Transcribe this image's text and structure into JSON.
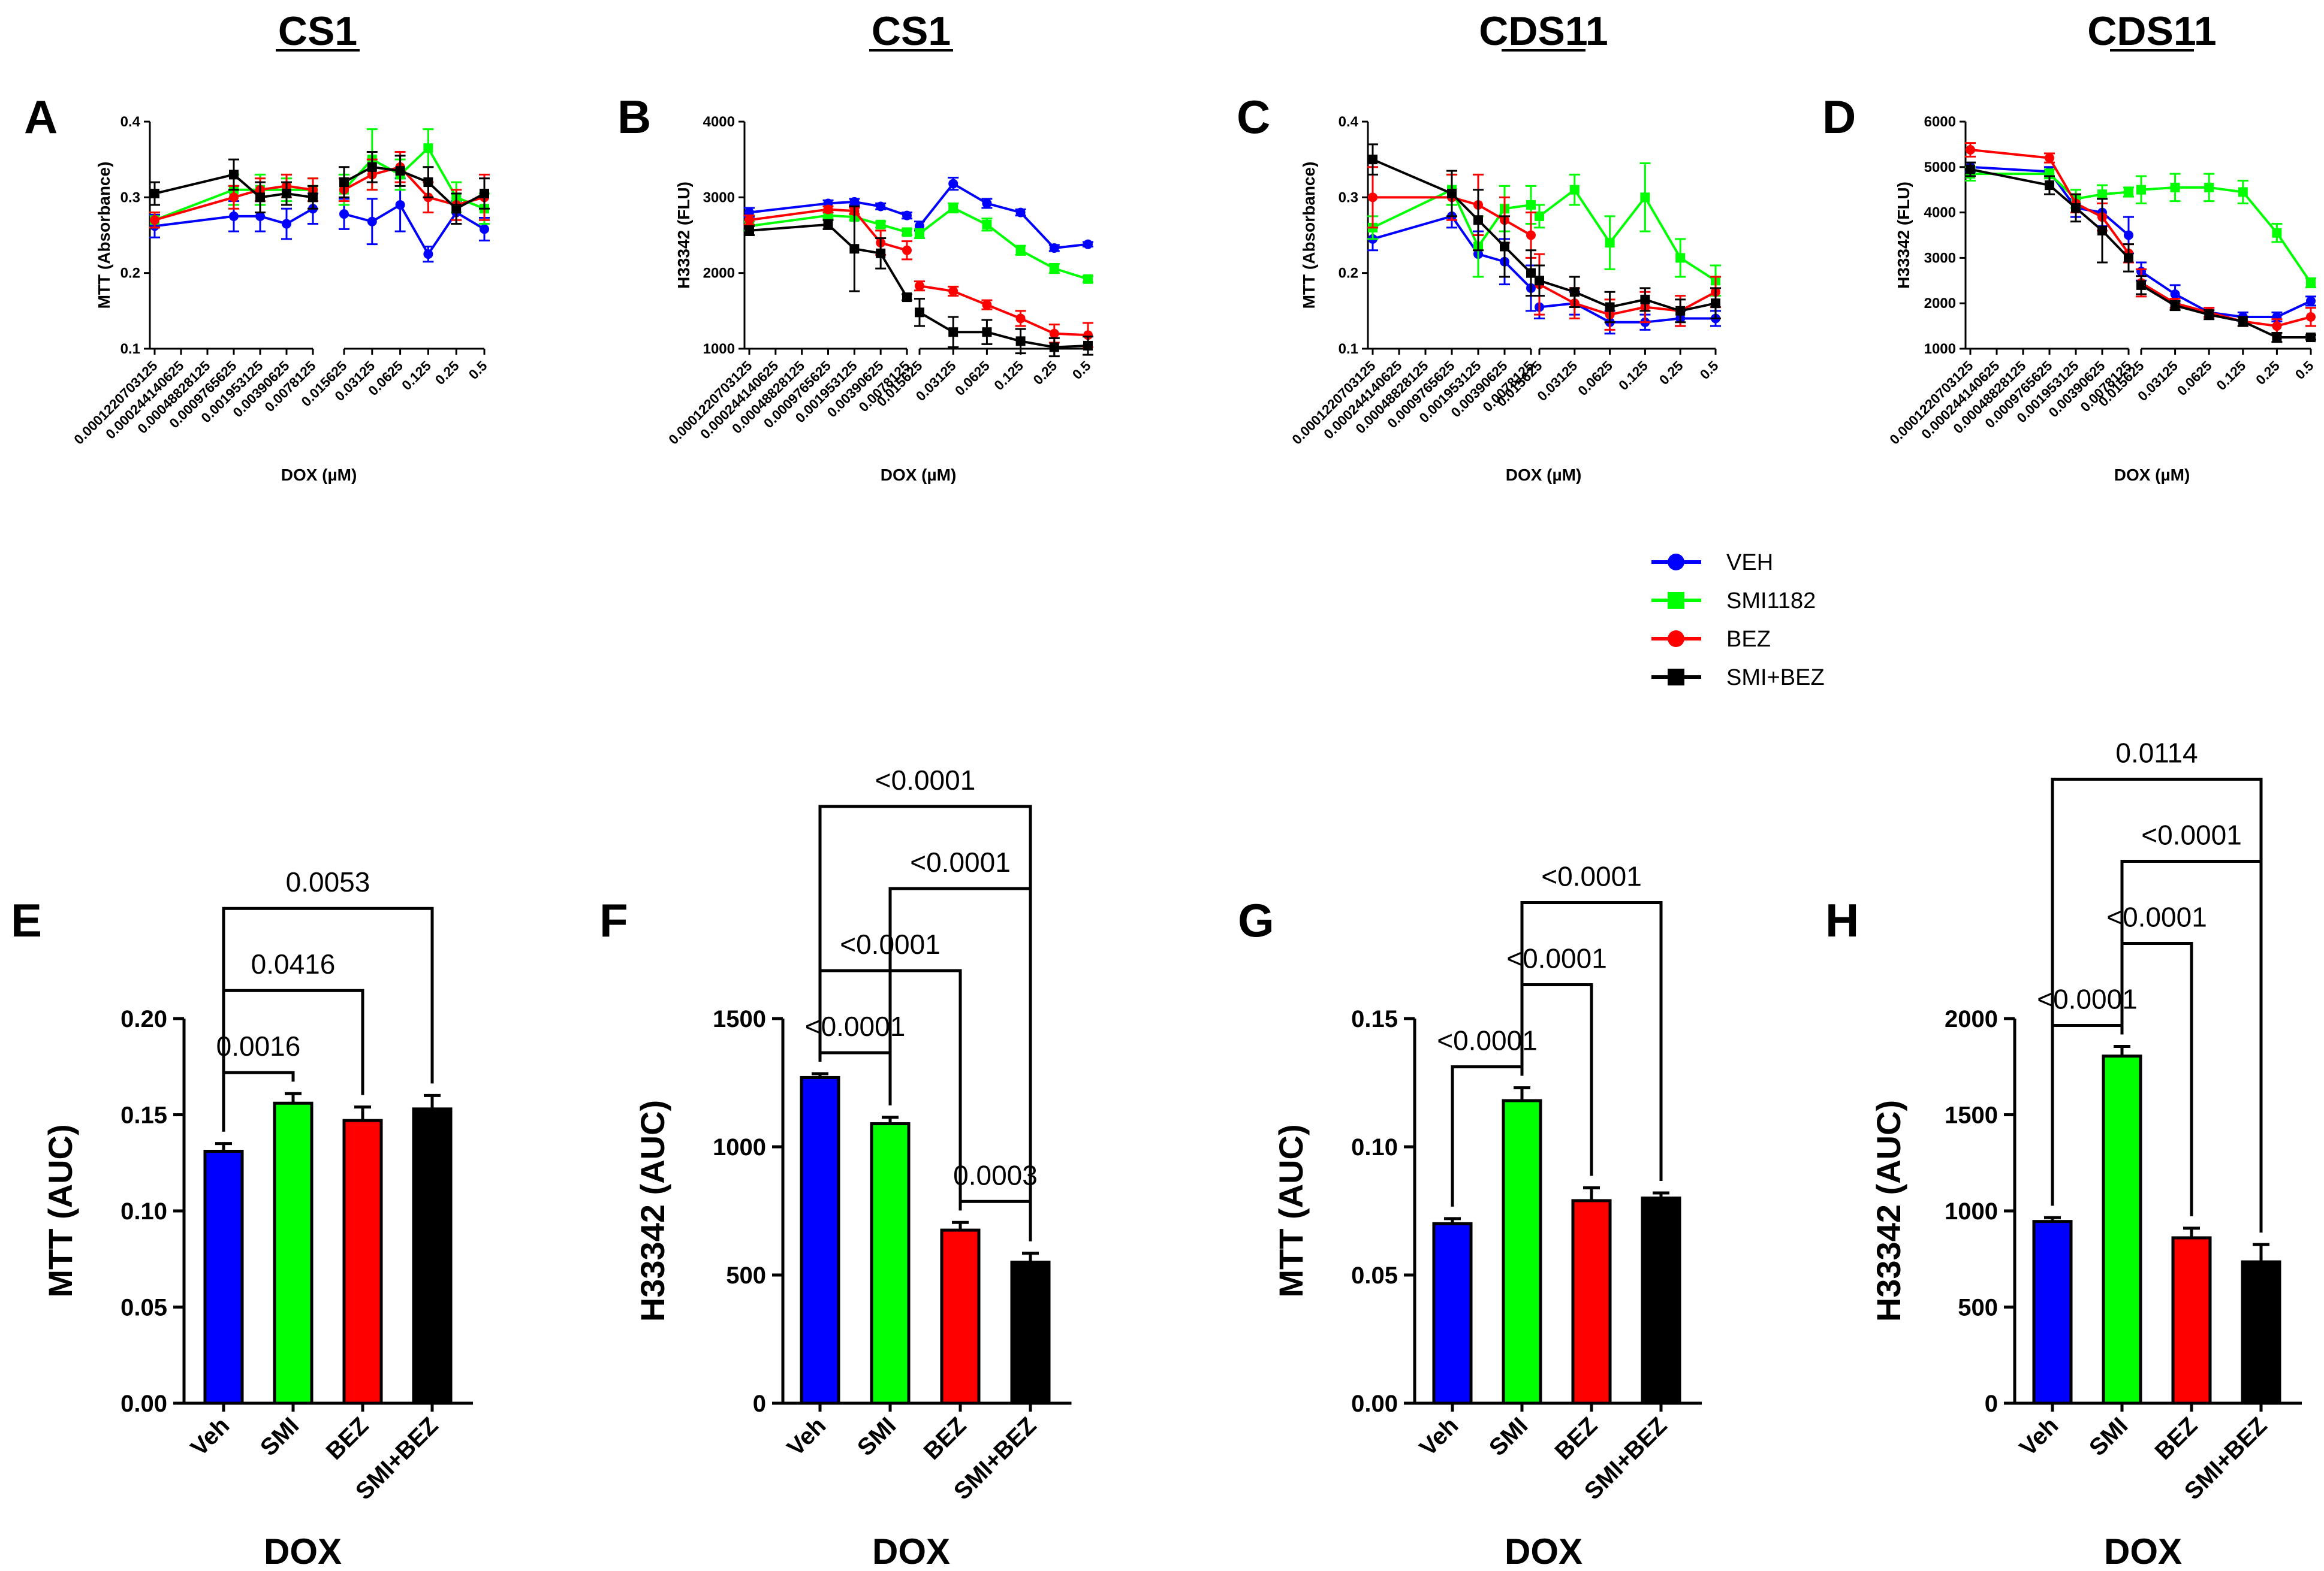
{
  "legend": {
    "entries": [
      {
        "name": "VEH",
        "color": "#0000FF",
        "marker": "circle"
      },
      {
        "name": "SMI1182",
        "color": "#00FF00",
        "marker": "square"
      },
      {
        "name": "BEZ",
        "color": "#FF0000",
        "marker": "circle"
      },
      {
        "name": "SMI+BEZ",
        "color": "#000000",
        "marker": "square"
      }
    ]
  },
  "chart_data": [
    {
      "panel": "A",
      "type": "line",
      "title": "CS1",
      "xlabel": "DOX (µM)",
      "ylabel": "MTT (Absorbance)",
      "ylim": [
        0.1,
        0.4
      ],
      "yticks": [
        "0.1",
        "0.2",
        "0.3",
        "0.4"
      ],
      "x_left": [
        "0.0001220703125",
        "0.000244140625",
        "0.00048828125",
        "0.0009765625",
        "0.001953125",
        "0.00390625",
        "0.0078125"
      ],
      "x_right": [
        "0.015625",
        "0.03125",
        "0.0625",
        "0.125",
        "0.25",
        "0.5"
      ],
      "left_points": [
        0,
        3,
        4,
        5,
        6
      ],
      "series": [
        {
          "name": "VEH",
          "values": [
            0.262,
            0.275,
            0.275,
            0.265,
            0.285,
            0.278,
            0.268,
            0.29,
            0.225,
            0.28,
            0.258
          ],
          "errors": [
            0.015,
            0.02,
            0.02,
            0.02,
            0.02,
            0.02,
            0.03,
            0.035,
            0.01,
            0.015,
            0.015
          ]
        },
        {
          "name": "SMI1182",
          "values": [
            0.27,
            0.31,
            0.31,
            0.31,
            0.31,
            0.31,
            0.35,
            0.33,
            0.365,
            0.3,
            0.285
          ],
          "errors": [
            0.01,
            0.02,
            0.02,
            0.015,
            0.015,
            0.02,
            0.04,
            0.02,
            0.025,
            0.02,
            0.02
          ]
        },
        {
          "name": "BEZ",
          "values": [
            0.27,
            0.3,
            0.31,
            0.315,
            0.31,
            0.31,
            0.33,
            0.34,
            0.3,
            0.29,
            0.3
          ],
          "errors": [
            0.01,
            0.015,
            0.015,
            0.015,
            0.015,
            0.015,
            0.02,
            0.02,
            0.02,
            0.02,
            0.03
          ]
        },
        {
          "name": "SMI+BEZ",
          "values": [
            0.305,
            0.33,
            0.3,
            0.305,
            0.3,
            0.32,
            0.34,
            0.335,
            0.32,
            0.285,
            0.305
          ],
          "errors": [
            0.015,
            0.02,
            0.02,
            0.015,
            0.015,
            0.02,
            0.02,
            0.02,
            0.02,
            0.02,
            0.02
          ]
        }
      ]
    },
    {
      "panel": "B",
      "type": "line",
      "title": "CS1",
      "xlabel": "DOX (µM)",
      "ylabel": "H33342 (FLU)",
      "ylim": [
        1000,
        4000
      ],
      "yticks": [
        "1000",
        "2000",
        "3000",
        "4000"
      ],
      "x_left": [
        "0.0001220703125",
        "0.000244140625",
        "0.00048828125",
        "0.0009765625",
        "0.001953125",
        "0.00390625",
        "0.0078125"
      ],
      "x_right": [
        "0.015625",
        "0.03125",
        "0.0625",
        "0.125",
        "0.25",
        "0.5"
      ],
      "left_points": [
        0,
        3,
        4,
        5,
        6
      ],
      "series": [
        {
          "name": "VEH",
          "values": [
            2800,
            2920,
            2940,
            2880,
            2760,
            2620,
            3180,
            2920,
            2800,
            2330,
            2380
          ],
          "errors": [
            60,
            40,
            40,
            40,
            40,
            60,
            80,
            60,
            40,
            40,
            30
          ]
        },
        {
          "name": "SMI1182",
          "values": [
            2620,
            2760,
            2740,
            2640,
            2540,
            2520,
            2860,
            2640,
            2300,
            2060,
            1920
          ],
          "errors": [
            60,
            40,
            40,
            40,
            40,
            60,
            60,
            80,
            60,
            60,
            40
          ]
        },
        {
          "name": "BEZ",
          "values": [
            2700,
            2840,
            2820,
            2400,
            2300,
            1830,
            1760,
            1580,
            1400,
            1200,
            1180
          ],
          "errors": [
            60,
            40,
            40,
            160,
            120,
            60,
            60,
            60,
            100,
            120,
            160
          ]
        },
        {
          "name": "SMI+BEZ",
          "values": [
            2560,
            2640,
            2320,
            2260,
            1680,
            1480,
            1220,
            1220,
            1100,
            1020,
            1040
          ],
          "errors": [
            60,
            60,
            560,
            200,
            40,
            180,
            200,
            160,
            160,
            120,
            120
          ]
        }
      ]
    },
    {
      "panel": "C",
      "type": "line",
      "title": "CDS11",
      "xlabel": "DOX (µM)",
      "ylabel": "MTT (Absorbance)",
      "ylim": [
        0.1,
        0.4
      ],
      "yticks": [
        "0.1",
        "0.2",
        "0.3",
        "0.4"
      ],
      "x_left": [
        "0.0001220703125",
        "0.000244140625",
        "0.00048828125",
        "0.0009765625",
        "0.001953125",
        "0.00390625",
        "0.0078125"
      ],
      "x_right": [
        "0.015625",
        "0.03125",
        "0.0625",
        "0.125",
        "0.25",
        "0.5"
      ],
      "left_points": [
        0,
        3,
        4,
        5,
        6
      ],
      "series": [
        {
          "name": "VEH",
          "values": [
            0.245,
            0.275,
            0.225,
            0.215,
            0.18,
            0.155,
            0.16,
            0.135,
            0.135,
            0.14,
            0.14
          ],
          "errors": [
            0.015,
            0.015,
            0.03,
            0.03,
            0.03,
            0.015,
            0.015,
            0.015,
            0.01,
            0.01,
            0.01
          ]
        },
        {
          "name": "SMI1182",
          "values": [
            0.26,
            0.31,
            0.235,
            0.285,
            0.29,
            0.275,
            0.31,
            0.24,
            0.3,
            0.22,
            0.19
          ],
          "errors": [
            0.015,
            0.02,
            0.04,
            0.03,
            0.025,
            0.015,
            0.02,
            0.035,
            0.045,
            0.025,
            0.02
          ]
        },
        {
          "name": "BEZ",
          "values": [
            0.3,
            0.3,
            0.29,
            0.27,
            0.25,
            0.185,
            0.16,
            0.145,
            0.155,
            0.15,
            0.175
          ],
          "errors": [
            0.04,
            0.03,
            0.04,
            0.03,
            0.03,
            0.04,
            0.02,
            0.02,
            0.02,
            0.02,
            0.02
          ]
        },
        {
          "name": "SMI+BEZ",
          "values": [
            0.35,
            0.305,
            0.27,
            0.235,
            0.2,
            0.19,
            0.175,
            0.155,
            0.165,
            0.15,
            0.16
          ],
          "errors": [
            0.02,
            0.03,
            0.04,
            0.04,
            0.03,
            0.02,
            0.02,
            0.02,
            0.015,
            0.015,
            0.02
          ]
        }
      ]
    },
    {
      "panel": "D",
      "type": "line",
      "title": "CDS11",
      "xlabel": "DOX (µM)",
      "ylabel": "H33342 (FLU)",
      "ylim": [
        1000,
        6000
      ],
      "yticks": [
        "1000",
        "2000",
        "3000",
        "4000",
        "5000",
        "6000"
      ],
      "x_left": [
        "0.0001220703125",
        "0.000244140625",
        "0.00048828125",
        "0.0009765625",
        "0.001953125",
        "0.00390625",
        "0.0078125"
      ],
      "x_right": [
        "0.015625",
        "0.03125",
        "0.0625",
        "0.125",
        "0.25",
        "0.5"
      ],
      "left_points": [
        0,
        3,
        4,
        5,
        6
      ],
      "series": [
        {
          "name": "VEH",
          "values": [
            5000,
            4900,
            4100,
            4000,
            3500,
            2700,
            2200,
            1800,
            1700,
            1700,
            2050
          ],
          "errors": [
            100,
            100,
            200,
            300,
            400,
            200,
            200,
            100,
            100,
            100,
            100
          ]
        },
        {
          "name": "SMI1182",
          "values": [
            4850,
            4850,
            4300,
            4400,
            4450,
            4500,
            4550,
            4550,
            4450,
            3550,
            2450
          ],
          "errors": [
            150,
            100,
            200,
            200,
            100,
            300,
            300,
            300,
            250,
            200,
            100
          ]
        },
        {
          "name": "BEZ",
          "values": [
            5380,
            5200,
            4200,
            3900,
            3100,
            2450,
            2000,
            1800,
            1600,
            1500,
            1700
          ],
          "errors": [
            150,
            100,
            200,
            300,
            200,
            300,
            100,
            100,
            100,
            150,
            200
          ]
        },
        {
          "name": "SMI+BEZ",
          "values": [
            4950,
            4600,
            4100,
            3600,
            3000,
            2400,
            1950,
            1750,
            1600,
            1250,
            1250
          ],
          "errors": [
            150,
            200,
            300,
            700,
            300,
            200,
            100,
            100,
            100,
            100,
            50
          ]
        }
      ]
    },
    {
      "panel": "E",
      "type": "bar",
      "title": "",
      "categories": [
        "Veh",
        "SMI",
        "BEZ",
        "SMI+BEZ"
      ],
      "values": [
        0.131,
        0.156,
        0.147,
        0.153
      ],
      "errors": [
        0.004,
        0.005,
        0.007,
        0.007
      ],
      "colors": [
        "#0000FF",
        "#00FF00",
        "#FF0000",
        "#000000"
      ],
      "ylim": [
        0,
        0.2
      ],
      "yticks": [
        "0.00",
        "0.05",
        "0.10",
        "0.15",
        "0.20"
      ],
      "xlabel": "DOX",
      "ylabel": "MTT (AUC)",
      "comparisons": [
        {
          "a": 0,
          "b": 1,
          "p": "0.0016"
        },
        {
          "a": 0,
          "b": 2,
          "p": "0.0416"
        },
        {
          "a": 0,
          "b": 3,
          "p": "0.0053"
        }
      ]
    },
    {
      "panel": "F",
      "type": "bar",
      "title": "",
      "categories": [
        "Veh",
        "SMI",
        "BEZ",
        "SMI+BEZ"
      ],
      "values": [
        1270,
        1090,
        675,
        550
      ],
      "errors": [
        15,
        25,
        30,
        35
      ],
      "colors": [
        "#0000FF",
        "#00FF00",
        "#FF0000",
        "#000000"
      ],
      "ylim": [
        0,
        1500
      ],
      "yticks": [
        "0",
        "500",
        "1000",
        "1500"
      ],
      "xlabel": "DOX",
      "ylabel": "H33342 (AUC)",
      "comparisons": [
        {
          "a": 0,
          "b": 1,
          "p": "<0.0001"
        },
        {
          "a": 2,
          "b": 3,
          "p": "0.0003"
        },
        {
          "a": 0,
          "b": 2,
          "p": "<0.0001"
        },
        {
          "a": 1,
          "b": 3,
          "p": "<0.0001"
        },
        {
          "a": 0,
          "b": 3,
          "p": "<0.0001"
        }
      ]
    },
    {
      "panel": "G",
      "type": "bar",
      "title": "",
      "categories": [
        "Veh",
        "SMI",
        "BEZ",
        "SMI+BEZ"
      ],
      "values": [
        0.07,
        0.118,
        0.079,
        0.08
      ],
      "errors": [
        0.002,
        0.005,
        0.005,
        0.002
      ],
      "colors": [
        "#0000FF",
        "#00FF00",
        "#FF0000",
        "#000000"
      ],
      "ylim": [
        0,
        0.15
      ],
      "yticks": [
        "0.00",
        "0.05",
        "0.10",
        "0.15"
      ],
      "xlabel": "DOX",
      "ylabel": "MTT (AUC)",
      "comparisons": [
        {
          "a": 0,
          "b": 1,
          "p": "<0.0001"
        },
        {
          "a": 1,
          "b": 2,
          "p": "<0.0001"
        },
        {
          "a": 1,
          "b": 3,
          "p": "<0.0001"
        }
      ]
    },
    {
      "panel": "H",
      "type": "bar",
      "title": "",
      "categories": [
        "Veh",
        "SMI",
        "BEZ",
        "SMI+BEZ"
      ],
      "values": [
        945,
        1805,
        860,
        735
      ],
      "errors": [
        20,
        50,
        50,
        90
      ],
      "colors": [
        "#0000FF",
        "#00FF00",
        "#FF0000",
        "#000000"
      ],
      "ylim": [
        0,
        2000
      ],
      "yticks": [
        "0",
        "500",
        "1000",
        "1500",
        "2000"
      ],
      "xlabel": "DOX",
      "ylabel": "H33342 (AUC)",
      "comparisons": [
        {
          "a": 0,
          "b": 1,
          "p": "<0.0001"
        },
        {
          "a": 1,
          "b": 2,
          "p": "<0.0001"
        },
        {
          "a": 1,
          "b": 3,
          "p": "<0.0001"
        },
        {
          "a": 0,
          "b": 3,
          "p": "0.0114"
        }
      ]
    }
  ]
}
